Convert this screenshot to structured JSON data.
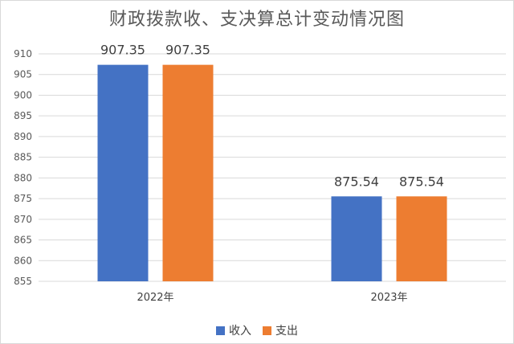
{
  "title": "财政拨款收、支决算总计变动情况图",
  "colors": {
    "income": "#4472c4",
    "expense": "#ed7d31",
    "grid": "#d9d9d9",
    "axis_text": "#595959"
  },
  "chart_data": {
    "type": "bar",
    "title": "财政拨款收、支决算总计变动情况图",
    "categories": [
      "2022年",
      "2023年"
    ],
    "series": [
      {
        "name": "收入",
        "values": [
          907.35,
          875.54
        ],
        "labels": [
          "907.35",
          "875.54"
        ]
      },
      {
        "name": "支出",
        "values": [
          907.35,
          875.54
        ],
        "labels": [
          "907.35",
          "875.54"
        ]
      }
    ],
    "ylim": [
      855,
      910
    ],
    "yticks": [
      "855",
      "860",
      "865",
      "870",
      "875",
      "880",
      "885",
      "890",
      "895",
      "900",
      "905",
      "910"
    ],
    "grid": true,
    "legend": "bottom",
    "xlabel": "",
    "ylabel": ""
  }
}
